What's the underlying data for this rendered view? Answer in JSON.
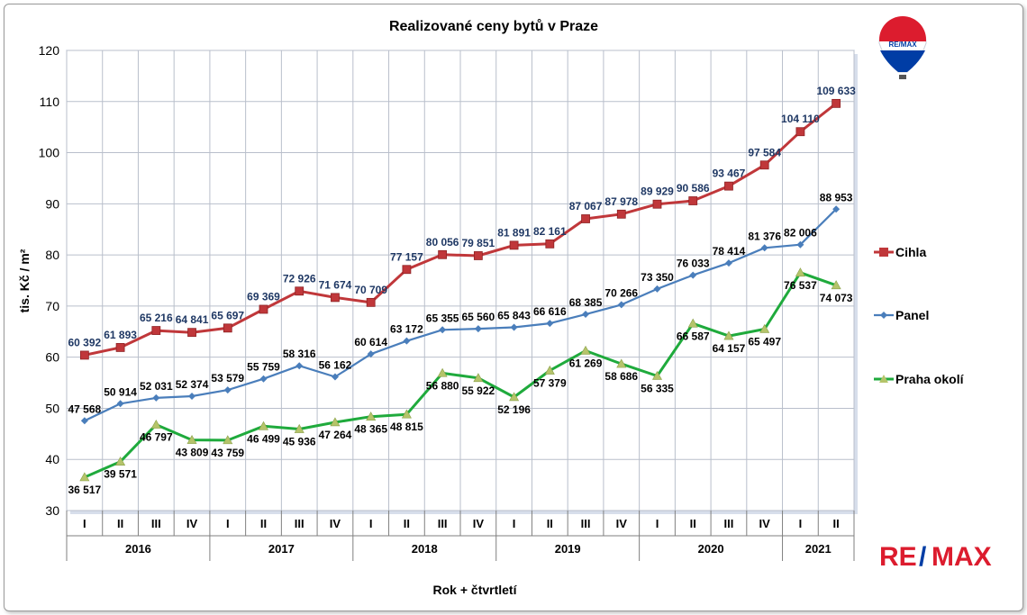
{
  "chart_data": {
    "type": "line",
    "title": "Realizované ceny bytů v Praze",
    "ylabel": "tis. Kč / m²",
    "xlabel": "Rok + čtvrtletí",
    "ylim": [
      30,
      120
    ],
    "yticks": [
      30,
      40,
      50,
      60,
      70,
      80,
      90,
      100,
      110,
      120
    ],
    "grid": true,
    "legend_position": "right",
    "quarters": [
      "I",
      "II",
      "III",
      "IV",
      "I",
      "II",
      "III",
      "IV",
      "I",
      "II",
      "III",
      "IV",
      "I",
      "II",
      "III",
      "IV",
      "I",
      "II",
      "III",
      "IV",
      "I",
      "II"
    ],
    "years": [
      {
        "label": "2016",
        "span": 4
      },
      {
        "label": "2017",
        "span": 4
      },
      {
        "label": "2018",
        "span": 4
      },
      {
        "label": "2019",
        "span": 4
      },
      {
        "label": "2020",
        "span": 4
      },
      {
        "label": "2021",
        "span": 2
      }
    ],
    "series": [
      {
        "name": "Cihla",
        "color": "#c0373a",
        "label_color": "#1f3864",
        "marker": "square",
        "values": [
          60.392,
          61.893,
          65.216,
          64.841,
          65.697,
          69.369,
          72.926,
          71.674,
          70.709,
          77.157,
          80.056,
          79.851,
          81.891,
          82.161,
          87.067,
          87.978,
          89.929,
          90.586,
          93.467,
          97.584,
          104.11,
          109.633
        ],
        "labels": [
          "60 392",
          "61 893",
          "65 216",
          "64 841",
          "65 697",
          "69 369",
          "72 926",
          "71 674",
          "70 709",
          "77 157",
          "80 056",
          "79 851",
          "81 891",
          "82 161",
          "87 067",
          "87 978",
          "89 929",
          "90 586",
          "93 467",
          "97 584",
          "104 110",
          "109 633"
        ]
      },
      {
        "name": "Panel",
        "color": "#4a7ebb",
        "label_color": "#000000",
        "marker": "diamond",
        "values": [
          47.568,
          50.914,
          52.031,
          52.374,
          53.579,
          55.759,
          58.316,
          56.162,
          60.614,
          63.172,
          65.355,
          65.56,
          65.843,
          66.616,
          68.385,
          70.266,
          73.35,
          76.033,
          78.414,
          81.376,
          82.006,
          88.953
        ],
        "labels": [
          "47 568",
          "50 914",
          "52 031",
          "52 374",
          "53 579",
          "55 759",
          "58 316",
          "56 162",
          "60 614",
          "63 172",
          "65 355",
          "65 560",
          "65 843",
          "66 616",
          "68 385",
          "70 266",
          "73 350",
          "76 033",
          "78 414",
          "81 376",
          "82 006",
          "88 953"
        ]
      },
      {
        "name": "Praha okolí",
        "color": "#1faa3c",
        "label_color": "#000000",
        "marker": "triangle",
        "values": [
          36.517,
          39.571,
          46.797,
          43.809,
          43.759,
          46.499,
          45.936,
          47.264,
          48.365,
          48.815,
          56.88,
          55.922,
          52.196,
          57.379,
          61.269,
          58.686,
          56.335,
          66.587,
          64.157,
          65.497,
          76.537,
          74.073
        ],
        "labels": [
          "36 517",
          "39 571",
          "46 797",
          "43 809",
          "43 759",
          "46 499",
          "45 936",
          "47 264",
          "48 365",
          "48 815",
          "56 880",
          "55 922",
          "52 196",
          "57 379",
          "61 269",
          "58 686",
          "56 335",
          "66 587",
          "64 157",
          "65 497",
          "76 537",
          "74 073"
        ]
      }
    ]
  },
  "branding": {
    "balloon_text": "RE/MAX",
    "logo_text_left": "RE",
    "logo_text_slash": "/",
    "logo_text_right": "MAX",
    "red": "#dc1c2e",
    "blue": "#003da5"
  }
}
